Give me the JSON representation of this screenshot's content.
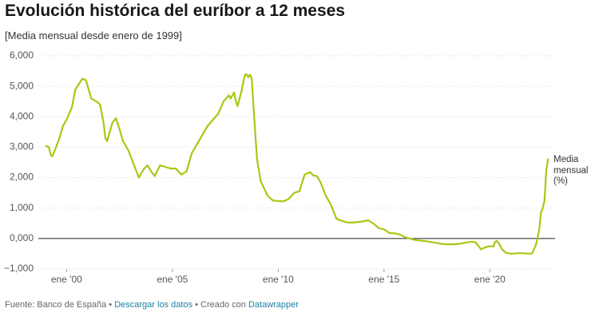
{
  "chart_data": {
    "type": "line",
    "title": "Evolución histórica del euríbor a 12 meses",
    "subtitle": "[Media mensual desde enero de 1999]",
    "x": [
      "1999-01",
      "1999-03",
      "1999-04",
      "1999-05",
      "1999-07",
      "1999-09",
      "1999-11",
      "2000-01",
      "2000-04",
      "2000-06",
      "2000-10",
      "2000-12",
      "2001-03",
      "2001-06",
      "2001-08",
      "2001-10",
      "2001-11",
      "2001-12",
      "2002-03",
      "2002-05",
      "2002-07",
      "2002-09",
      "2002-12",
      "2003-03",
      "2003-06",
      "2003-09",
      "2003-11",
      "2004-01",
      "2004-03",
      "2004-06",
      "2004-09",
      "2004-12",
      "2005-03",
      "2005-06",
      "2005-09",
      "2005-12",
      "2006-03",
      "2006-06",
      "2006-09",
      "2006-12",
      "2007-03",
      "2007-06",
      "2007-09",
      "2007-10",
      "2007-12",
      "2008-01",
      "2008-02",
      "2008-04",
      "2008-06",
      "2008-07",
      "2008-08",
      "2008-09",
      "2008-10",
      "2008-11",
      "2008-12",
      "2009-01",
      "2009-03",
      "2009-05",
      "2009-07",
      "2009-10",
      "2010-01",
      "2010-04",
      "2010-07",
      "2010-10",
      "2011-01",
      "2011-04",
      "2011-07",
      "2011-09",
      "2011-11",
      "2012-01",
      "2012-04",
      "2012-07",
      "2012-10",
      "2013-01",
      "2013-04",
      "2013-07",
      "2013-10",
      "2014-01",
      "2014-04",
      "2014-07",
      "2014-10",
      "2015-01",
      "2015-04",
      "2015-07",
      "2015-10",
      "2016-01",
      "2016-04",
      "2016-07",
      "2016-10",
      "2017-01",
      "2017-04",
      "2017-07",
      "2017-10",
      "2018-01",
      "2018-04",
      "2018-07",
      "2018-10",
      "2019-01",
      "2019-03",
      "2019-05",
      "2019-07",
      "2019-08",
      "2019-10",
      "2020-01",
      "2020-03",
      "2020-04",
      "2020-05",
      "2020-06",
      "2020-08",
      "2020-10",
      "2021-01",
      "2021-06",
      "2021-09",
      "2021-12",
      "2022-01",
      "2022-03",
      "2022-04",
      "2022-05",
      "2022-06",
      "2022-07",
      "2022-08",
      "2022-09",
      "2022-10"
    ],
    "series": [
      {
        "name": "Media mensual (%)",
        "color": "#a5c914",
        "values": [
          3.05,
          3.0,
          2.75,
          2.7,
          3.0,
          3.3,
          3.7,
          3.9,
          4.3,
          4.9,
          5.25,
          5.2,
          4.6,
          4.5,
          4.4,
          3.8,
          3.3,
          3.2,
          3.8,
          3.95,
          3.6,
          3.2,
          2.9,
          2.45,
          2.0,
          2.3,
          2.4,
          2.2,
          2.05,
          2.4,
          2.35,
          2.3,
          2.3,
          2.1,
          2.2,
          2.8,
          3.1,
          3.4,
          3.7,
          3.9,
          4.1,
          4.5,
          4.7,
          4.6,
          4.8,
          4.5,
          4.35,
          4.8,
          5.35,
          5.4,
          5.3,
          5.38,
          5.25,
          4.35,
          3.45,
          2.6,
          1.9,
          1.65,
          1.4,
          1.25,
          1.23,
          1.22,
          1.3,
          1.5,
          1.55,
          2.1,
          2.18,
          2.07,
          2.05,
          1.85,
          1.4,
          1.1,
          0.65,
          0.58,
          0.53,
          0.52,
          0.54,
          0.56,
          0.6,
          0.49,
          0.34,
          0.3,
          0.18,
          0.17,
          0.13,
          0.04,
          -0.01,
          -0.05,
          -0.07,
          -0.09,
          -0.12,
          -0.15,
          -0.18,
          -0.19,
          -0.19,
          -0.18,
          -0.15,
          -0.12,
          -0.11,
          -0.13,
          -0.28,
          -0.36,
          -0.3,
          -0.25,
          -0.27,
          -0.11,
          -0.08,
          -0.15,
          -0.36,
          -0.47,
          -0.5,
          -0.48,
          -0.49,
          -0.5,
          -0.48,
          -0.24,
          0.01,
          0.29,
          0.85,
          0.99,
          1.25,
          2.23,
          2.63
        ]
      }
    ],
    "xlim": [
      "1998-09",
      "2023-02"
    ],
    "xticks": [
      {
        "value": "2000-01",
        "label": "ene '00"
      },
      {
        "value": "2005-01",
        "label": "ene '05"
      },
      {
        "value": "2010-01",
        "label": "ene '10"
      },
      {
        "value": "2015-01",
        "label": "ene '15"
      },
      {
        "value": "2020-01",
        "label": "ene '20"
      }
    ],
    "ylim": [
      -1,
      6
    ],
    "yticks": [
      {
        "value": 6,
        "label": "6,000"
      },
      {
        "value": 5,
        "label": "5,000"
      },
      {
        "value": 4,
        "label": "4,000"
      },
      {
        "value": 3,
        "label": "3,000"
      },
      {
        "value": 2,
        "label": "2,000"
      },
      {
        "value": 1,
        "label": "1,000"
      },
      {
        "value": 0,
        "label": "0,000"
      },
      {
        "value": -1,
        "label": "−1,000"
      }
    ],
    "grid": true,
    "footer": {
      "source": "Fuente: Banco de España",
      "separator": "•",
      "download": "Descargar los datos",
      "credit_label": "Creado con",
      "credit": "Datawrapper"
    }
  }
}
